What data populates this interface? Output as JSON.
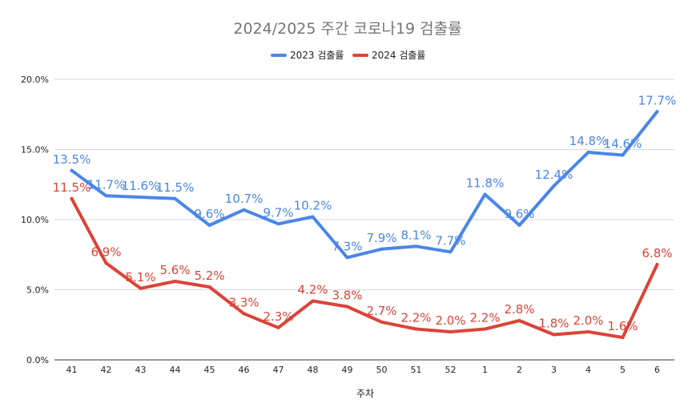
{
  "chart_data": {
    "type": "line",
    "title": "2024/2025 주간 코로나19 검출률",
    "xlabel": "주차",
    "ylabel": "",
    "categories": [
      "41",
      "42",
      "43",
      "44",
      "45",
      "46",
      "47",
      "48",
      "49",
      "50",
      "51",
      "52",
      "1",
      "2",
      "3",
      "4",
      "5",
      "6"
    ],
    "ylim": [
      0,
      20
    ],
    "yticks": [
      0,
      5,
      10,
      15,
      20
    ],
    "ytick_labels": [
      "0.0%",
      "5.0%",
      "10.0%",
      "15.0%",
      "20.0%"
    ],
    "grid": true,
    "legend_position": "top",
    "series": [
      {
        "name": "2023 검출률",
        "color": "#4a86e8",
        "values": [
          13.5,
          11.7,
          11.6,
          11.5,
          9.6,
          10.7,
          9.7,
          10.2,
          7.3,
          7.9,
          8.1,
          7.7,
          11.8,
          9.6,
          12.4,
          14.8,
          14.6,
          17.7
        ],
        "labels": [
          "13.5%",
          "11.7%",
          "11.6%",
          "11.5%",
          "9.6%",
          "10.7%",
          "9.7%",
          "10.2%",
          "7.3%",
          "7.9%",
          "8.1%",
          "7.7%",
          "11.8%",
          "9.6%",
          "12.4%",
          "14.8%",
          "14.6%",
          "17.7%"
        ]
      },
      {
        "name": "2024 검출률",
        "color": "#db4437",
        "values": [
          11.5,
          6.9,
          5.1,
          5.6,
          5.2,
          3.3,
          2.3,
          4.2,
          3.8,
          2.7,
          2.2,
          2.0,
          2.2,
          2.8,
          1.8,
          2.0,
          1.6,
          6.8
        ],
        "labels": [
          "11.5%",
          "6.9%",
          "5.1%",
          "5.6%",
          "5.2%",
          "3.3%",
          "2.3%",
          "4.2%",
          "3.8%",
          "2.7%",
          "2.2%",
          "2.0%",
          "2.2%",
          "2.8%",
          "1.8%",
          "2.0%",
          "1.6%",
          "6.8%"
        ]
      }
    ]
  }
}
